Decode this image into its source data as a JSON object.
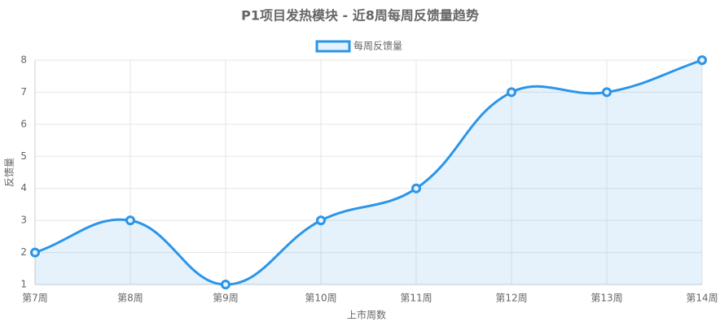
{
  "chart_data": {
    "type": "line",
    "title": "P1项目发热模块 - 近8周每周反馈量趋势",
    "x_label": "上市周数",
    "y_label": "反馈量",
    "categories": [
      "第7周",
      "第8周",
      "第9周",
      "第10周",
      "第11周",
      "第12周",
      "第13周",
      "第14周"
    ],
    "series": [
      {
        "name": "每周反馈量",
        "color": "#2b95e8",
        "values": [
          2,
          3,
          1,
          3,
          4,
          7,
          7,
          8
        ]
      }
    ],
    "ylim": [
      1,
      8
    ],
    "yticks": [
      1,
      2,
      3,
      4,
      5,
      6,
      7,
      8
    ],
    "grid": true,
    "legend": "top"
  }
}
